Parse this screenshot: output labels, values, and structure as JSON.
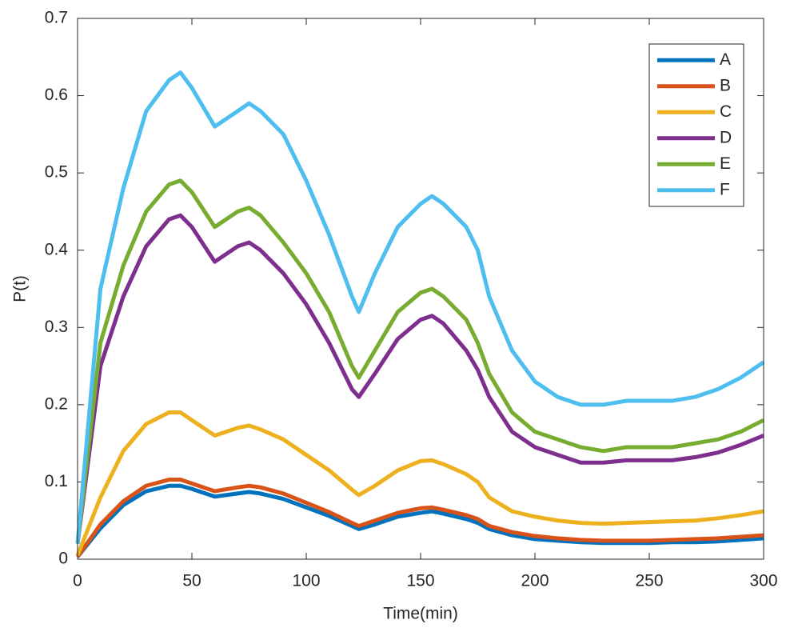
{
  "chart_data": {
    "type": "line",
    "x_label": "Time(min)",
    "y_label": "P(t)",
    "x": [
      0,
      10,
      20,
      30,
      40,
      45,
      50,
      60,
      70,
      75,
      80,
      90,
      100,
      110,
      120,
      123,
      130,
      140,
      150,
      155,
      160,
      170,
      175,
      180,
      190,
      200,
      210,
      220,
      230,
      240,
      250,
      260,
      270,
      280,
      290,
      300
    ],
    "series": [
      {
        "name": "A",
        "color": "#0072bd",
        "values": [
          0.003,
          0.04,
          0.07,
          0.088,
          0.095,
          0.095,
          0.091,
          0.081,
          0.085,
          0.087,
          0.085,
          0.078,
          0.067,
          0.056,
          0.043,
          0.039,
          0.045,
          0.055,
          0.06,
          0.062,
          0.059,
          0.052,
          0.047,
          0.039,
          0.031,
          0.026,
          0.024,
          0.022,
          0.021,
          0.021,
          0.021,
          0.022,
          0.022,
          0.023,
          0.025,
          0.027
        ]
      },
      {
        "name": "B",
        "color": "#d95319",
        "values": [
          0.003,
          0.045,
          0.075,
          0.095,
          0.103,
          0.103,
          0.098,
          0.088,
          0.093,
          0.095,
          0.093,
          0.085,
          0.073,
          0.061,
          0.047,
          0.043,
          0.05,
          0.06,
          0.066,
          0.067,
          0.064,
          0.057,
          0.052,
          0.043,
          0.035,
          0.03,
          0.027,
          0.025,
          0.024,
          0.024,
          0.024,
          0.025,
          0.026,
          0.027,
          0.029,
          0.031
        ]
      },
      {
        "name": "C",
        "color": "#edb120",
        "values": [
          0.005,
          0.08,
          0.14,
          0.175,
          0.19,
          0.19,
          0.18,
          0.16,
          0.17,
          0.173,
          0.168,
          0.155,
          0.135,
          0.115,
          0.09,
          0.083,
          0.095,
          0.115,
          0.127,
          0.128,
          0.123,
          0.11,
          0.1,
          0.08,
          0.062,
          0.055,
          0.05,
          0.047,
          0.046,
          0.047,
          0.048,
          0.049,
          0.05,
          0.053,
          0.057,
          0.062
        ]
      },
      {
        "name": "D",
        "color": "#7e2f8e",
        "values": [
          0.02,
          0.25,
          0.34,
          0.405,
          0.44,
          0.445,
          0.43,
          0.385,
          0.405,
          0.41,
          0.4,
          0.37,
          0.33,
          0.28,
          0.22,
          0.21,
          0.24,
          0.285,
          0.31,
          0.315,
          0.305,
          0.27,
          0.245,
          0.21,
          0.165,
          0.145,
          0.135,
          0.125,
          0.125,
          0.128,
          0.128,
          0.128,
          0.132,
          0.138,
          0.148,
          0.16
        ]
      },
      {
        "name": "E",
        "color": "#77ac30",
        "values": [
          0.02,
          0.28,
          0.38,
          0.45,
          0.485,
          0.49,
          0.475,
          0.43,
          0.45,
          0.455,
          0.445,
          0.41,
          0.37,
          0.32,
          0.25,
          0.235,
          0.27,
          0.32,
          0.345,
          0.35,
          0.34,
          0.31,
          0.28,
          0.24,
          0.19,
          0.165,
          0.155,
          0.145,
          0.14,
          0.145,
          0.145,
          0.145,
          0.15,
          0.155,
          0.165,
          0.18
        ]
      },
      {
        "name": "F",
        "color": "#4dbeee",
        "values": [
          0.02,
          0.35,
          0.48,
          0.58,
          0.62,
          0.63,
          0.61,
          0.56,
          0.58,
          0.59,
          0.58,
          0.55,
          0.49,
          0.42,
          0.34,
          0.32,
          0.37,
          0.43,
          0.46,
          0.47,
          0.46,
          0.43,
          0.4,
          0.34,
          0.27,
          0.23,
          0.21,
          0.2,
          0.2,
          0.205,
          0.205,
          0.205,
          0.21,
          0.22,
          0.235,
          0.255
        ]
      }
    ],
    "xlim": [
      0,
      300
    ],
    "xticks": [
      0,
      50,
      100,
      150,
      200,
      250,
      300
    ],
    "ylim": [
      0,
      0.7
    ],
    "yticks": [
      0,
      0.1,
      0.2,
      0.3,
      0.4,
      0.5,
      0.6,
      0.7
    ],
    "legend": "top-right",
    "box": true
  }
}
